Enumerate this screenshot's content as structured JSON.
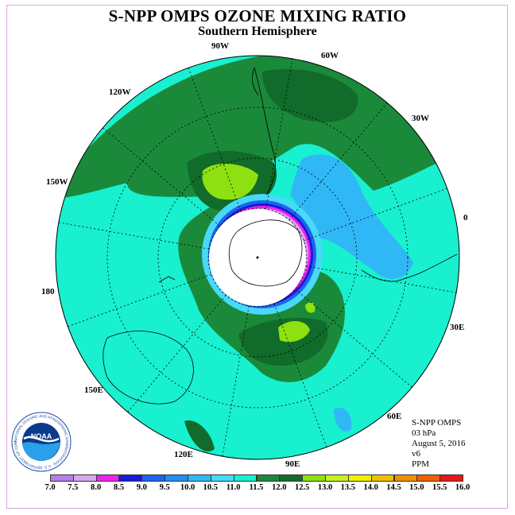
{
  "header": {
    "title": "S-NPP OMPS OZONE MIXING RATIO",
    "subtitle": "Southern Hemisphere"
  },
  "longitude_labels": {
    "w90": "90W",
    "w60": "60W",
    "w120": "120W",
    "w30": "30W",
    "w150": "150W",
    "e0": "0",
    "d180": "180",
    "e30": "30E",
    "e150": "150E",
    "e60": "60E",
    "e120": "120E",
    "e90": "90E"
  },
  "info": {
    "instrument": "S-NPP OMPS",
    "level": "03 hPa",
    "date": "August 5, 2016",
    "version": "v6",
    "units": "PPM"
  },
  "logo": {
    "text": "NOAA",
    "ring_text": "NATIONAL OCEANIC AND ATMOSPHERIC ADMINISTRATION · U.S. DEPARTMENT OF COMMERCE"
  },
  "colorbar": {
    "ticks": [
      "7.0",
      "7.5",
      "8.0",
      "8.5",
      "9.0",
      "9.5",
      "10.0",
      "10.5",
      "11.0",
      "11.5",
      "12.0",
      "12.5",
      "13.0",
      "13.5",
      "14.0",
      "14.5",
      "15.0",
      "15.5",
      "16.0"
    ],
    "colors": [
      "#b57ee8",
      "#d8a8ee",
      "#ee22ee",
      "#1a1ad8",
      "#1a66ee",
      "#2290f0",
      "#30b8f6",
      "#48d8f8",
      "#18f0d0",
      "#1a8a3a",
      "#116b2a",
      "#8ee010",
      "#c8f020",
      "#f4f000",
      "#f0c000",
      "#f09000",
      "#f06000",
      "#e81818",
      "#7a4a30"
    ]
  },
  "colors": {
    "background_field": "#18f0d0",
    "dark_green": "#1a8a3a",
    "darker_green": "#116b2a",
    "light_blue": "#30b8f6",
    "pole_fill": "#ffffff"
  }
}
